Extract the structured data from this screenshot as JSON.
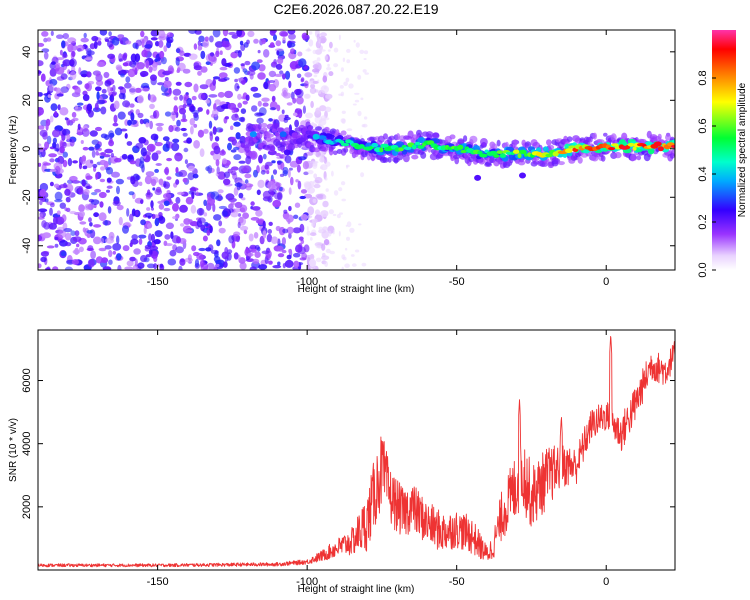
{
  "title": "C2E6.2026.087.20.22.E19",
  "colors": {
    "series": "#ee3333",
    "frame": "#000000"
  },
  "chart_data": [
    {
      "type": "heatmap",
      "name": "spectrogram",
      "xlabel": "Height of straight line (km)",
      "ylabel": "Frequency (Hz)",
      "xlim": [
        -190,
        23
      ],
      "ylim": [
        -50,
        49
      ],
      "xticks": [
        -150,
        -100,
        -50,
        0
      ],
      "xtick_labels": [
        "-150",
        "-100",
        "-50",
        "0"
      ],
      "yticks": [
        -40,
        -20,
        0,
        20,
        40
      ],
      "ytick_labels": [
        "-40",
        "-20",
        "0",
        "20",
        "40"
      ],
      "colorbar": {
        "label": "Normalized spectral amplitude",
        "range": [
          0.0,
          1.0
        ],
        "ticks": [
          0.0,
          0.2,
          0.4,
          0.6,
          0.8
        ],
        "tick_labels": [
          "0.0",
          "0.2",
          "0.4",
          "0.6",
          "0.8"
        ]
      },
      "ridge": {
        "description": "signal ridge frequency (Hz) vs height (km)",
        "x": [
          -120,
          -100,
          -90,
          -80,
          -70,
          -60,
          -50,
          -40,
          -30,
          -20,
          -10,
          0,
          10,
          20
        ],
        "frequency": [
          5,
          5,
          3,
          1,
          0,
          2,
          0,
          -2,
          -2,
          -2,
          0,
          1,
          1,
          1
        ],
        "amplitude": [
          0.3,
          0.35,
          0.45,
          0.55,
          0.6,
          0.55,
          0.6,
          0.55,
          0.65,
          0.75,
          0.85,
          0.9,
          0.9,
          0.9
        ]
      },
      "noise_extent": [
        -190,
        -100
      ]
    },
    {
      "type": "line",
      "name": "snr",
      "xlabel": "Height of straight line (km)",
      "ylabel": "SNR (10 * v/v)",
      "xlim": [
        -190,
        23
      ],
      "ylim": [
        0,
        7600
      ],
      "xticks": [
        -150,
        -100,
        -50,
        0
      ],
      "xtick_labels": [
        "-150",
        "-100",
        "-50",
        "0"
      ],
      "yticks": [
        2000,
        4000,
        6000
      ],
      "ytick_labels": [
        "2000",
        "4000",
        "6000"
      ],
      "series": [
        {
          "name": "SNR",
          "envelope_x": [
            -190,
            -150,
            -110,
            -100,
            -95,
            -90,
            -85,
            -80,
            -77,
            -75,
            -72,
            -68,
            -65,
            -60,
            -55,
            -50,
            -45,
            -40,
            -38,
            -35,
            -30,
            -28,
            -25,
            -20,
            -15,
            -10,
            -5,
            0,
            5,
            10,
            15,
            20,
            23
          ],
          "envelope_y": [
            150,
            150,
            180,
            260,
            450,
            700,
            900,
            1500,
            2600,
            3200,
            2300,
            1800,
            2000,
            1500,
            1200,
            1300,
            1100,
            500,
            700,
            1700,
            2700,
            3200,
            2300,
            2900,
            3300,
            3300,
            4600,
            4900,
            4300,
            5300,
            6500,
            6300,
            6900
          ],
          "noise_amplitude": [
            50,
            50,
            60,
            80,
            180,
            300,
            450,
            900,
            1200,
            1200,
            900,
            800,
            800,
            700,
            650,
            600,
            600,
            300,
            400,
            800,
            1100,
            1300,
            1000,
            1000,
            700,
            600,
            500,
            500,
            600,
            600,
            500,
            500,
            400
          ],
          "peaks": [
            {
              "x": 1.5,
              "y": 7500
            },
            {
              "x": -29,
              "y": 5400
            },
            {
              "x": -15,
              "y": 4900
            }
          ]
        }
      ]
    }
  ]
}
